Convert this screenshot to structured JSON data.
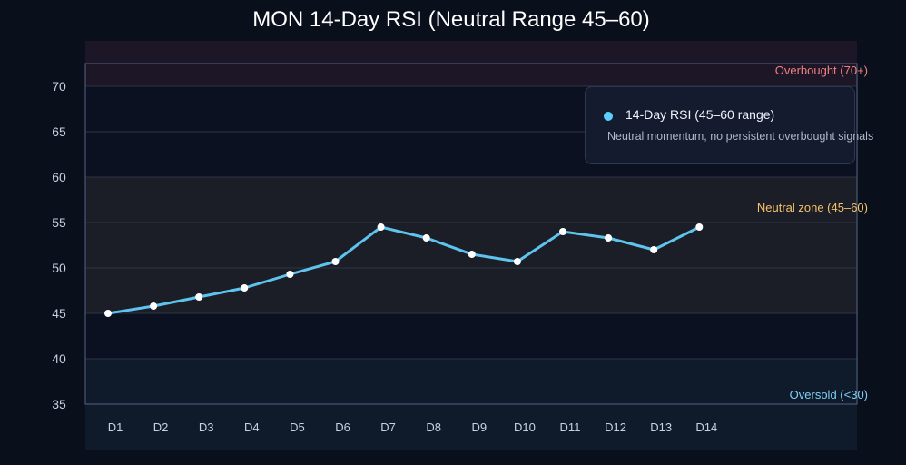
{
  "chart_data": {
    "type": "line",
    "title": "MON 14-Day RSI (Neutral Range 45–60)",
    "categories": [
      "D1",
      "D2",
      "D3",
      "D4",
      "D5",
      "D6",
      "D7",
      "D8",
      "D9",
      "D10",
      "D11",
      "D12",
      "D13",
      "D14"
    ],
    "series": [
      {
        "name": "14-Day RSI (45–60 range)",
        "values": [
          45.0,
          45.8,
          46.8,
          47.8,
          49.3,
          50.7,
          54.5,
          53.3,
          51.5,
          50.7,
          54.0,
          53.3,
          52.0,
          54.5
        ],
        "color": "#5ec4ee"
      }
    ],
    "ylim": [
      35,
      72.5
    ],
    "yticks": [
      35,
      40,
      45,
      50,
      55,
      60,
      65,
      70
    ],
    "grid": true,
    "bands": [
      {
        "label": "Overbought (70+)",
        "from": 70,
        "to": 72.5,
        "color": "#f08080"
      },
      {
        "label": "Neutral zone (45–60)",
        "from": 45,
        "to": 60,
        "color": "#f5c26b"
      },
      {
        "label": "Oversold (<30)",
        "from": 35,
        "to": 40,
        "color": "#7fd0f5"
      }
    ],
    "tooltip": {
      "series": "14-Day RSI (45–60 range)",
      "note": "Neutral momentum, no persistent overbought signals"
    }
  }
}
